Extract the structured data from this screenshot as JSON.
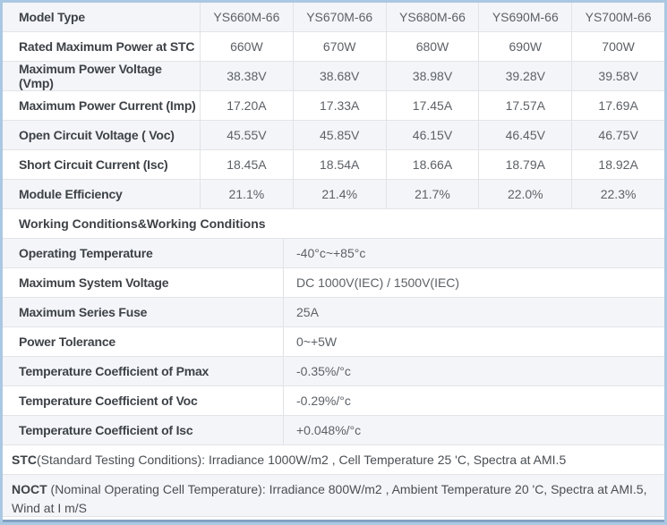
{
  "table": {
    "header": {
      "label": "Model Type",
      "models": [
        "YS660M-66",
        "YS670M-66",
        "YS680M-66",
        "YS690M-66",
        "YS700M-66"
      ]
    },
    "spec_rows": [
      {
        "label": "Rated Maximum Power at STC",
        "values": [
          "660W",
          "670W",
          "680W",
          "690W",
          "700W"
        ]
      },
      {
        "label": "Maximum Power Voltage (Vmp)",
        "values": [
          "38.38V",
          "38.68V",
          "38.98V",
          "39.28V",
          "39.58V"
        ]
      },
      {
        "label": "Maximum Power Current (Imp)",
        "values": [
          "17.20A",
          "17.33A",
          "17.45A",
          "17.57A",
          "17.69A"
        ]
      },
      {
        "label": "Open Circuit Voltage ( Voc)",
        "values": [
          "45.55V",
          "45.85V",
          "46.15V",
          "46.45V",
          "46.75V"
        ]
      },
      {
        "label": "Short Circuit Current (Isc)",
        "values": [
          "18.45A",
          "18.54A",
          "18.66A",
          "18.79A",
          "18.92A"
        ]
      },
      {
        "label": "Module Efficiency",
        "values": [
          "21.1%",
          "21.4%",
          "21.7%",
          "22.0%",
          "22.3%"
        ]
      }
    ],
    "section_header": "Working Conditions&Working Conditions",
    "condition_rows": [
      {
        "label": "Operating Temperature",
        "value": "-40°c~+85°c"
      },
      {
        "label": "Maximum System Voltage",
        "value": "DC 1000V(IEC) / 1500V(IEC)"
      },
      {
        "label": "Maximum Series Fuse",
        "value": "25A"
      },
      {
        "label": "Power Tolerance",
        "value": "0~+5W"
      },
      {
        "label": "Temperature Coefficient of Pmax",
        "value": "-0.35%/°c"
      },
      {
        "label": "Temperature Coefficient of Voc",
        "value": "-0.29%/°c"
      },
      {
        "label": "Temperature Coefficient of Isc",
        "value": "+0.048%/°c"
      }
    ],
    "footnotes": {
      "stc_bold": "STC",
      "stc_text": "(Standard Testing Conditions): Irradiance 1000W/m2 , Cell Temperature 25 'C, Spectra at AMI.5",
      "noct_bold": "NOCT",
      "noct_text": " (Nominal Operating Cell Temperature): Irradiance 800W/m2 , Ambient Temperature 20 'C, Spectra at AMI.5, Wind at I m/S"
    },
    "colors": {
      "frame": "#abc8e2",
      "bottom_bar": "#7d9cbe",
      "row_alt": "#f4f5f8",
      "grid_line": "#e2e4e8",
      "label_text": "#3d4247",
      "value_text": "#5c6166"
    }
  }
}
